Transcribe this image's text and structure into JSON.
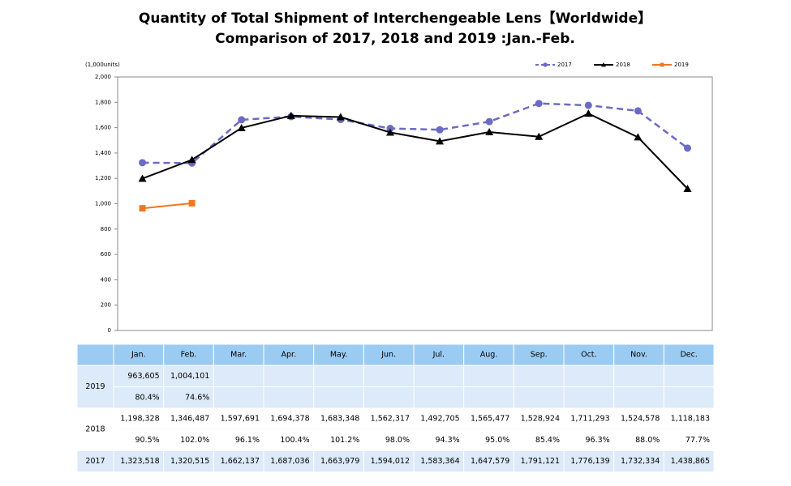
{
  "chart_data": {
    "type": "line",
    "title": [
      "Quantity of Total Shipment of Interchengeable Lens【Worldwide】",
      "Comparison of 2017, 2018 and 2019 :Jan.-Feb."
    ],
    "y_unit": "(1,000units)",
    "categories": [
      "Jan.",
      "Feb.",
      "Mar.",
      "Apr.",
      "May.",
      "Jun.",
      "Jul.",
      "Aug.",
      "Sep.",
      "Oct.",
      "Nov.",
      "Dec."
    ],
    "series": [
      {
        "name": "2017",
        "color": "#6b6bc4",
        "dash": true,
        "marker": "circle",
        "values": [
          1323.518,
          1320.515,
          1662.137,
          1687.036,
          1663.979,
          1594.012,
          1583.364,
          1647.579,
          1791.121,
          1776.139,
          1732.334,
          1438.865
        ]
      },
      {
        "name": "2018",
        "color": "#000000",
        "dash": false,
        "marker": "triangle",
        "values": [
          1198.328,
          1346.487,
          1597.691,
          1694.378,
          1683.348,
          1562.317,
          1492.705,
          1565.477,
          1528.924,
          1711.293,
          1524.578,
          1118.183
        ]
      },
      {
        "name": "2019",
        "color": "#f07820",
        "dash": false,
        "marker": "square",
        "values": [
          963.605,
          1004.101,
          null,
          null,
          null,
          null,
          null,
          null,
          null,
          null,
          null,
          null
        ]
      }
    ],
    "ylim": [
      0,
      2000
    ],
    "yticks": [
      0,
      {
        "value": 200,
        "label": "200"
      },
      {
        "value": 400,
        "label": "400"
      },
      {
        "value": 600,
        "label": "600"
      },
      {
        "value": 800,
        "label": "800"
      },
      {
        "value": 1000,
        "label": "1,000"
      },
      {
        "value": 1200,
        "label": "1,200"
      },
      {
        "value": 1400,
        "label": "1,400"
      },
      {
        "value": 1600,
        "label": "1,600"
      },
      {
        "value": 1800,
        "label": "1,800"
      },
      {
        "value": 2000,
        "label": "2,000"
      }
    ],
    "grid": false,
    "legend": "top-right"
  },
  "table": {
    "rows": [
      {
        "year": "2019",
        "counts": [
          "963,605",
          "1,004,101"
        ],
        "ratios": [
          "80.4%",
          "74.6%"
        ]
      },
      {
        "year": "2018",
        "counts": [
          "1,198,328",
          "1,346,487",
          "1,597,691",
          "1,694,378",
          "1,683,348",
          "1,562,317",
          "1,492,705",
          "1,565,477",
          "1,528,924",
          "1,711,293",
          "1,524,578",
          "1,118,183"
        ],
        "ratios": [
          "90.5%",
          "102.0%",
          "96.1%",
          "100.4%",
          "101.2%",
          "98.0%",
          "94.3%",
          "95.0%",
          "85.4%",
          "96.3%",
          "88.0%",
          "77.7%"
        ]
      },
      {
        "year": "2017",
        "counts": [
          "1,323,518",
          "1,320,515",
          "1,662,137",
          "1,687,036",
          "1,663,979",
          "1,594,012",
          "1,583,364",
          "1,647,579",
          "1,791,121",
          "1,776,139",
          "1,732,334",
          "1,438,865"
        ]
      }
    ]
  }
}
